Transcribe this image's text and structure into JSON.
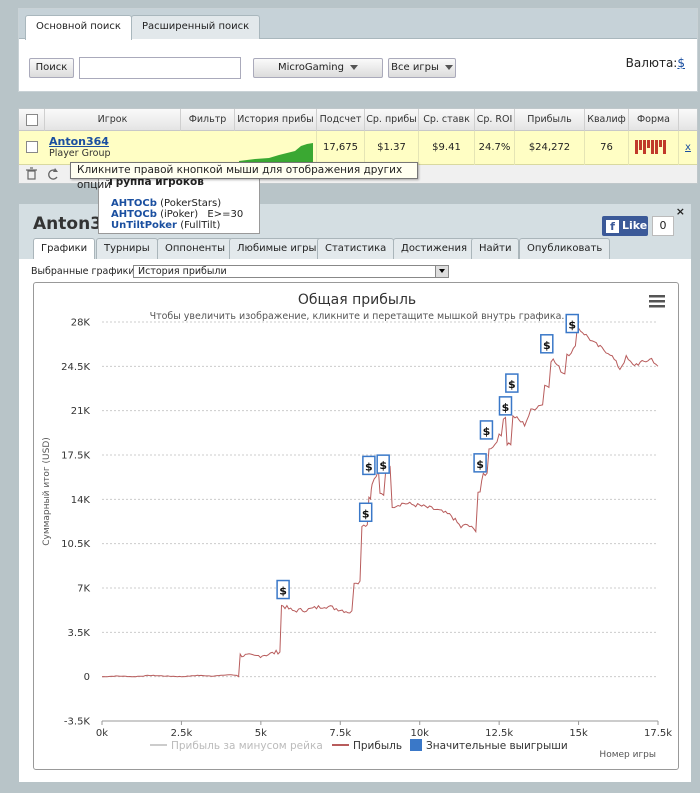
{
  "search": {
    "tabs": [
      "Основной поиск",
      "Расширенный поиск"
    ],
    "search_button": "Поиск",
    "search_value": "",
    "network": "MicroGaming",
    "games": "Все игры",
    "currency_label": "Валюта:",
    "currency_value": "$"
  },
  "results": {
    "headers": [
      "Игрок",
      "Фильтр",
      "История прибы",
      "Подсчет",
      "Ср. прибы",
      "Ср. ставк",
      "Ср. ROI",
      "Прибыль",
      "Квалиф",
      "Форма"
    ],
    "row": {
      "name": "Anton364",
      "group": "Player Group",
      "count": "17,675",
      "avg_profit": "$1.37",
      "avg_stake": "$9.41",
      "avg_roi": "24.7%",
      "profit": "$24,272",
      "qualify": "76",
      "remove": "x"
    },
    "tooltip": "Кликните правой кнопкой мыши для отображения других опций",
    "group_popup": {
      "title": "Группа игроков",
      "aliases": [
        {
          "name": "AHTOCb",
          "site": "(PokerStars)",
          "extra": ""
        },
        {
          "name": "AHTOCb",
          "site": "(iPoker)",
          "extra": "E>=30"
        },
        {
          "name": "UnTiltPoker",
          "site": "(FullTilt)",
          "extra": ""
        }
      ]
    }
  },
  "player": {
    "title": "Anton364",
    "close": "×",
    "fb_like": "Like",
    "fb_count": "0",
    "tabs": [
      "Графики",
      "Турниры",
      "Оппоненты",
      "Любимые игры",
      "Статистика",
      "Достижения",
      "Найти",
      "Опубликовать"
    ],
    "selected_graphs_label": "Выбранные графики:",
    "selected_graph": "История прибыли"
  },
  "chart_data": {
    "type": "line",
    "title": "Общая прибыль",
    "subtitle": "Чтобы увеличить изображение, кликните и перетащите мышкой внутрь графика.",
    "ylabel": "Суммарный итог (USD)",
    "xlabel": "Номер игры",
    "xlim": [
      0,
      17675
    ],
    "ylim": [
      -3500,
      28000
    ],
    "x_ticks": [
      "0k",
      "2.5k",
      "5k",
      "7.5k",
      "10k",
      "12.5k",
      "15k",
      "17.5k"
    ],
    "y_ticks": [
      "28K",
      "24.5K",
      "21K",
      "17.5K",
      "14K",
      "10.5K",
      "7K",
      "3.5K",
      "0",
      "-3.5K"
    ],
    "legend": [
      "Прибыль за минусом рейка",
      "Прибыль",
      "Значительные выигрыши"
    ],
    "legend_position": "bottom",
    "colors": {
      "profit": "#b85c5c",
      "rake": "#cccccc",
      "wins": "#3a78c8"
    },
    "series": [
      {
        "name": "Прибыль",
        "x": [
          0,
          500,
          1000,
          1500,
          2000,
          2500,
          3000,
          3500,
          4000,
          4300,
          4400,
          4800,
          5300,
          5600,
          5700,
          6000,
          6500,
          7000,
          7500,
          7800,
          8000,
          8300,
          8450,
          8500,
          8700,
          8800,
          9000,
          9200,
          9500,
          10000,
          10500,
          11000,
          11300,
          11500,
          11700,
          11900,
          12000,
          12300,
          12500,
          12700,
          12800,
          13000,
          13300,
          13500,
          13800,
          14000,
          14200,
          14500,
          14700,
          14900,
          15000,
          15300,
          15500,
          15800,
          16000,
          16300,
          16500,
          16700,
          17000,
          17300,
          17500
        ],
        "values": [
          0,
          50,
          0,
          100,
          50,
          0,
          100,
          50,
          150,
          100,
          1700,
          1600,
          1800,
          2000,
          5600,
          5200,
          5300,
          5600,
          5300,
          5100,
          7500,
          12000,
          14200,
          15200,
          16200,
          14400,
          16400,
          13500,
          13700,
          13500,
          13200,
          12700,
          11800,
          12000,
          11600,
          14600,
          16000,
          18100,
          19000,
          20500,
          18400,
          20500,
          19900,
          21000,
          21500,
          23000,
          25000,
          24000,
          25500,
          26000,
          27500,
          26800,
          26300,
          25800,
          25500,
          24300,
          25200,
          24600,
          24800,
          25100,
          24500
        ]
      }
    ],
    "significant_wins": [
      {
        "x": 5700,
        "y": 6800
      },
      {
        "x": 8300,
        "y": 12900
      },
      {
        "x": 8400,
        "y": 16600
      },
      {
        "x": 8850,
        "y": 16700
      },
      {
        "x": 11900,
        "y": 16800
      },
      {
        "x": 12100,
        "y": 19400
      },
      {
        "x": 12700,
        "y": 21300
      },
      {
        "x": 12900,
        "y": 23100
      },
      {
        "x": 14000,
        "y": 26200
      },
      {
        "x": 14800,
        "y": 27800
      }
    ]
  }
}
